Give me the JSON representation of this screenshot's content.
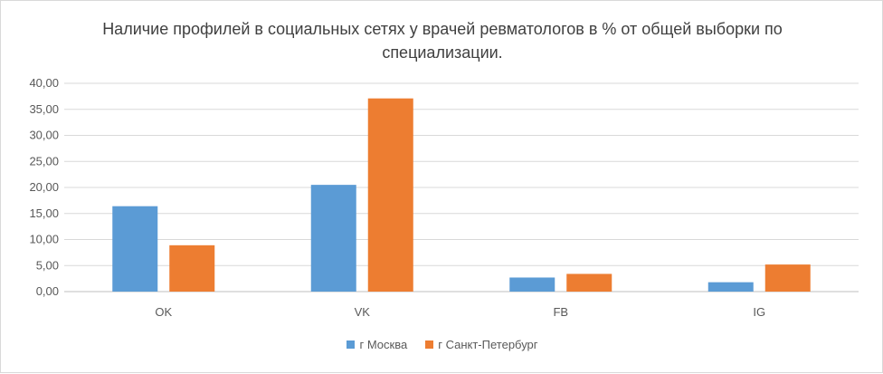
{
  "chart_data": {
    "type": "bar",
    "title": "Наличие профилей в социальных сетях у врачей ревматологов в % от общей выборки по специализации.",
    "categories": [
      "OK",
      "VK",
      "FB",
      "IG"
    ],
    "series": [
      {
        "name": "г Москва",
        "color": "#5b9bd5",
        "values": [
          16.4,
          20.5,
          2.7,
          1.8
        ]
      },
      {
        "name": "г Санкт-Петербург",
        "color": "#ed7d31",
        "values": [
          8.9,
          37.1,
          3.4,
          5.2
        ]
      }
    ],
    "ylim": [
      0,
      40
    ],
    "yticks": [
      "0,00",
      "5,00",
      "10,00",
      "15,00",
      "20,00",
      "25,00",
      "30,00",
      "35,00",
      "40,00"
    ],
    "ytick_values": [
      0,
      5,
      10,
      15,
      20,
      25,
      30,
      35,
      40
    ],
    "grid": true,
    "legend_position": "bottom"
  }
}
